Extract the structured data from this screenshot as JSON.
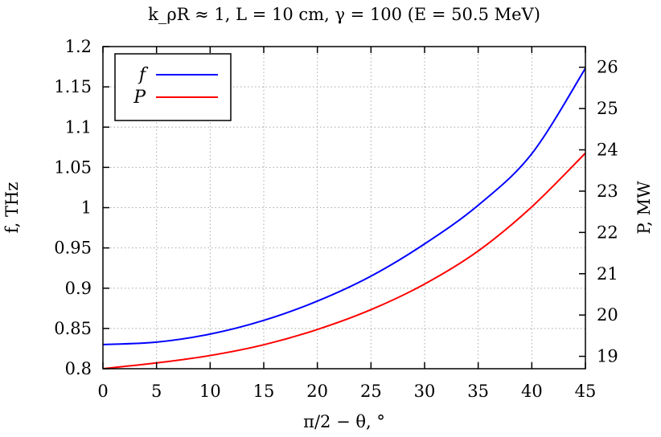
{
  "chart_data": {
    "type": "line",
    "title": "k_ρR ≈ 1, L = 10 cm, γ = 100 (E = 50.5 MeV)",
    "xlabel": "π/2 − θ, °",
    "ylabel": "f, THz",
    "y2label": "P, MW",
    "xlim": [
      0,
      45
    ],
    "ylim": [
      0.8,
      1.2
    ],
    "y2lim": [
      18.7,
      26.5
    ],
    "x_ticks": [
      0,
      5,
      10,
      15,
      20,
      25,
      30,
      35,
      40,
      45
    ],
    "y_ticks": [
      0.8,
      0.85,
      0.9,
      0.95,
      1,
      1.05,
      1.1,
      1.15,
      1.2
    ],
    "y2_ticks": [
      19,
      20,
      21,
      22,
      23,
      24,
      25,
      26
    ],
    "grid": true,
    "legend": "top-left",
    "series": [
      {
        "name": "f",
        "axis": "left",
        "color": "#0000ff",
        "x": [
          0,
          5,
          10,
          15,
          20,
          25,
          30,
          35,
          40,
          45
        ],
        "y": [
          0.83,
          0.833,
          0.843,
          0.86,
          0.884,
          0.915,
          0.955,
          1.003,
          1.067,
          1.173
        ]
      },
      {
        "name": "P",
        "axis": "right",
        "color": "#ff0000",
        "x": [
          0,
          5,
          10,
          15,
          20,
          25,
          30,
          35,
          40,
          45
        ],
        "y": [
          18.7,
          18.84,
          19.02,
          19.28,
          19.65,
          20.13,
          20.75,
          21.55,
          22.62,
          23.92
        ]
      }
    ]
  }
}
